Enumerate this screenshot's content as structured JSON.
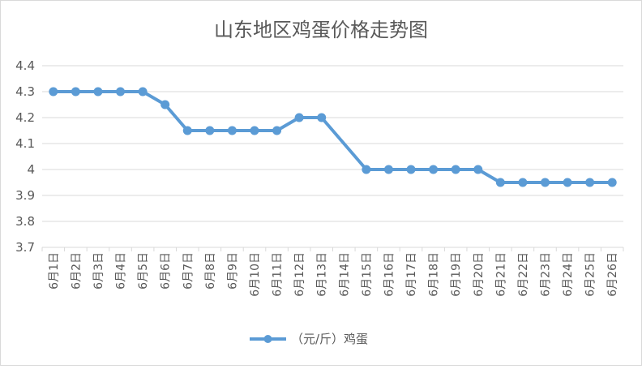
{
  "chart_data": {
    "type": "line",
    "title": "山东地区鸡蛋价格走势图",
    "xlabel": "",
    "ylabel": "",
    "ylim": [
      3.7,
      4.4
    ],
    "yticks": [
      3.7,
      3.8,
      3.9,
      4,
      4.1,
      4.2,
      4.3,
      4.4
    ],
    "categories": [
      "6月1日",
      "6月2日",
      "6月3日",
      "6月4日",
      "6月5日",
      "6月6日",
      "6月7日",
      "6月8日",
      "6月9日",
      "6月10日",
      "6月11日",
      "6月12日",
      "6月13日",
      "6月14日",
      "6月15日",
      "6月16日",
      "6月17日",
      "6月18日",
      "6月19日",
      "6月20日",
      "6月21日",
      "6月22日",
      "6月23日",
      "6月24日",
      "6月25日",
      "6月26日"
    ],
    "series": [
      {
        "name": "（元/斤）鸡蛋",
        "color": "#5b9bd5",
        "values": [
          4.3,
          4.3,
          4.3,
          4.3,
          4.3,
          4.25,
          4.15,
          4.15,
          4.15,
          4.15,
          4.15,
          4.2,
          4.2,
          null,
          4.0,
          4.0,
          4.0,
          4.0,
          4.0,
          4.0,
          3.95,
          3.95,
          3.95,
          3.95,
          3.95,
          3.95
        ]
      }
    ],
    "grid": true,
    "legend": "bottom"
  },
  "colors": {
    "series": "#5b9bd5",
    "grid": "#d9d9d9",
    "text": "#595959"
  }
}
